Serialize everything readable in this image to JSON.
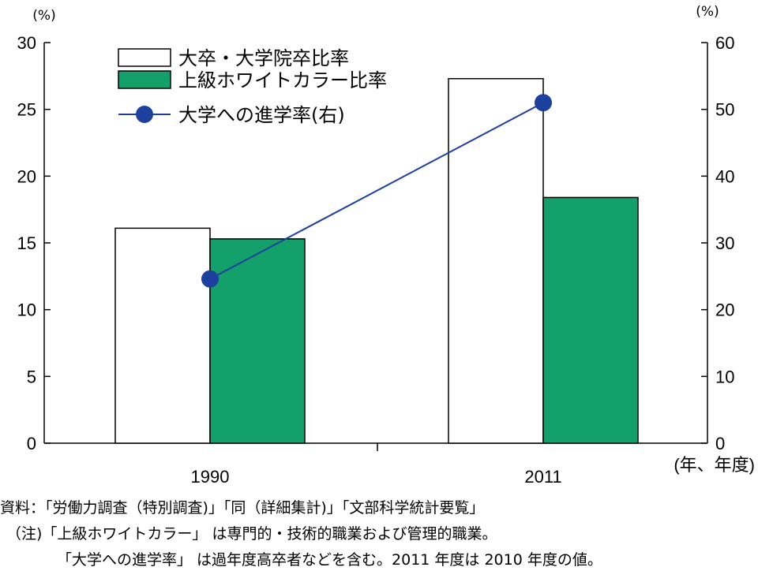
{
  "chart_data": {
    "type": "bar",
    "categories": [
      "1990",
      "2011"
    ],
    "x_unit": "(年、年度)",
    "y_left": {
      "unit": "(%)",
      "ylim": [
        0,
        30
      ],
      "ticks": [
        0,
        5,
        10,
        15,
        20,
        25,
        30
      ]
    },
    "y_right": {
      "unit": "(%)",
      "ylim": [
        0,
        60
      ],
      "ticks": [
        0,
        10,
        20,
        30,
        40,
        50,
        60
      ]
    },
    "series": [
      {
        "name": "大卒・大学院卒比率",
        "kind": "bar",
        "axis": "left",
        "color": "#ffffff",
        "values": [
          16.1,
          27.3
        ]
      },
      {
        "name": "上級ホワイトカラー比率",
        "kind": "bar",
        "axis": "left",
        "color": "#14a06a",
        "values": [
          15.3,
          18.4
        ]
      },
      {
        "name": "大学への進学率(右)",
        "kind": "line",
        "axis": "right",
        "color": "#1d3f9e",
        "values": [
          24.6,
          51.0
        ]
      }
    ],
    "legend_position": "top-left",
    "grid": false
  },
  "notes": {
    "source": "資料：「労働力調査（特別調査)」「同（詳細集計)」「文部科学統計要覧」",
    "note": "（注)「上級ホワイトカラー」 は専門的・技術的職業および管理的職業。",
    "note2": "「大学への進学率」 は過年度高卒者などを含む。2011 年度は 2010 年度の値。"
  }
}
